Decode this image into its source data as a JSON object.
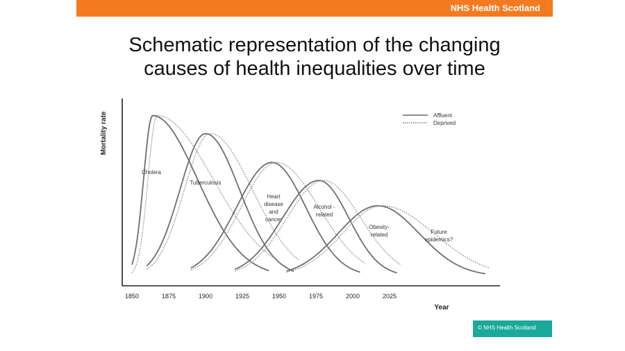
{
  "header": {
    "brand": "NHS Health Scotland"
  },
  "title_line1": "Schematic representation of the changing",
  "title_line2": "causes of health inequalities over time",
  "footer": {
    "copyright": "© NHS Health Scotland"
  },
  "colors": {
    "accent": "#f47a20",
    "footer": "#1aa99a",
    "affluent_line": "#6e6e6e",
    "deprived_line": "#8a8a8a"
  },
  "chart_data": {
    "type": "line",
    "xlabel": "Year",
    "ylabel": "Mortality rate",
    "x_ticks": [
      1850,
      1875,
      1900,
      1925,
      1950,
      1975,
      2000,
      2025
    ],
    "legend": {
      "position": "top-right",
      "entries": [
        {
          "name": "Affluent",
          "style": "solid"
        },
        {
          "name": "Deprived",
          "style": "dotted"
        }
      ]
    },
    "waves": [
      {
        "label": [
          "Cholera"
        ],
        "peak_year": 1864,
        "peak": 0.89,
        "start": 1850,
        "end": 1943
      },
      {
        "label": [
          "Tuberculosis"
        ],
        "peak_year": 1900,
        "peak": 0.79,
        "start": 1860,
        "end": 1960
      },
      {
        "label": [
          "Heart",
          "disease",
          "and",
          "cancer"
        ],
        "peak_year": 1945,
        "peak": 0.63,
        "start": 1890,
        "end": 2005
      },
      {
        "label": [
          "Alcohol -",
          "related"
        ],
        "peak_year": 1977,
        "peak": 0.53,
        "start": 1920,
        "end": 2030
      },
      {
        "label": [
          "Obesity-",
          "related"
        ],
        "peak_year": 2017,
        "peak": 0.39,
        "start": 1955,
        "end": 2090
      }
    ],
    "annotation": [
      "Future",
      "epidemics?"
    ],
    "note": "Schematic only: no y-axis scale; peaks are relative heights (0-1)."
  }
}
